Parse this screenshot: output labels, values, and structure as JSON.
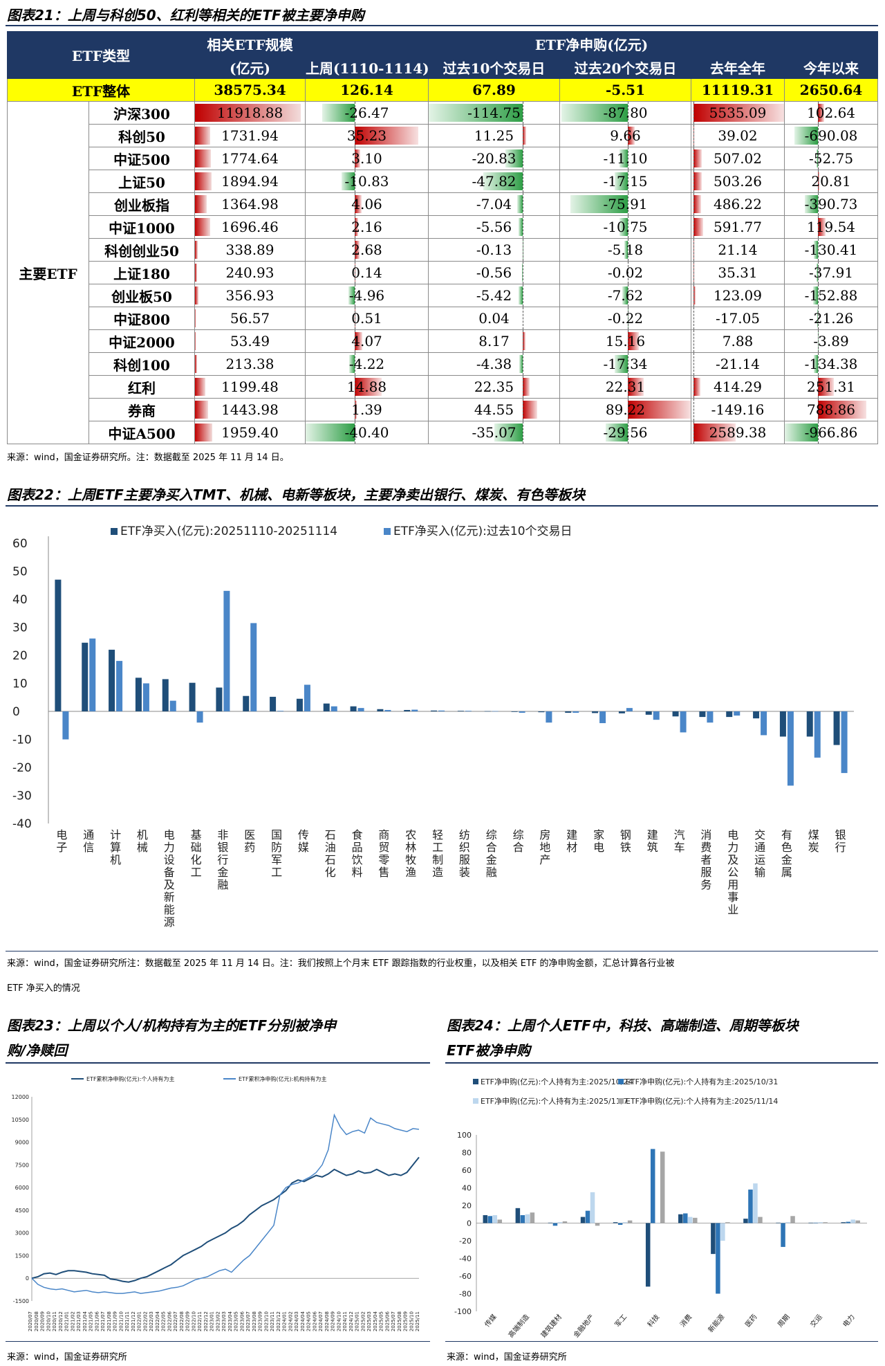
{
  "fig21": {
    "title": "图表21：上周与科创50、红利等相关的ETF被主要净申购",
    "headers": {
      "type": "ETF类型",
      "scale_line1": "相关ETF规模",
      "scale_line2": "(亿元)",
      "net_group": "ETF净申购(亿元)",
      "last_week": "上周(1110-1114)",
      "past10": "过去10个交易日",
      "past20": "过去20个交易日",
      "last_year": "去年全年",
      "ytd": "今年以来"
    },
    "total": {
      "name": "ETF整体",
      "values": [
        "38575.34",
        "126.14",
        "67.89",
        "-5.51",
        "11119.31",
        "2650.64"
      ]
    },
    "group_label": "主要ETF",
    "rows": [
      {
        "name": "沪深300",
        "values": [
          "11918.88",
          "-26.47",
          "-114.75",
          "-87.80",
          "5535.09",
          "102.64"
        ]
      },
      {
        "name": "科创50",
        "values": [
          "1731.94",
          "35.23",
          "11.25",
          "9.66",
          "39.02",
          "-690.08"
        ]
      },
      {
        "name": "中证500",
        "values": [
          "1774.64",
          "3.10",
          "-20.83",
          "-11.10",
          "507.02",
          "-52.75"
        ]
      },
      {
        "name": "上证50",
        "values": [
          "1894.94",
          "-10.83",
          "-47.82",
          "-17.15",
          "503.26",
          "20.81"
        ]
      },
      {
        "name": "创业板指",
        "values": [
          "1364.98",
          "4.06",
          "-7.04",
          "-75.91",
          "486.22",
          "-390.73"
        ]
      },
      {
        "name": "中证1000",
        "values": [
          "1696.46",
          "2.16",
          "-5.56",
          "-10.75",
          "591.77",
          "119.54"
        ]
      },
      {
        "name": "科创创业50",
        "values": [
          "338.89",
          "2.68",
          "-0.13",
          "-5.18",
          "21.14",
          "-130.41"
        ]
      },
      {
        "name": "上证180",
        "values": [
          "240.93",
          "0.14",
          "-0.56",
          "-0.02",
          "35.31",
          "-37.91"
        ]
      },
      {
        "name": "创业板50",
        "values": [
          "356.93",
          "-4.96",
          "-5.42",
          "-7.62",
          "123.09",
          "-152.88"
        ]
      },
      {
        "name": "中证800",
        "values": [
          "56.57",
          "0.51",
          "0.04",
          "-0.22",
          "-17.05",
          "-21.26"
        ]
      },
      {
        "name": "中证2000",
        "values": [
          "53.49",
          "4.07",
          "8.17",
          "15.16",
          "7.88",
          "-3.89"
        ]
      },
      {
        "name": "科创100",
        "values": [
          "213.38",
          "-4.22",
          "-4.38",
          "-17.34",
          "-21.14",
          "-134.38"
        ]
      },
      {
        "name": "红利",
        "values": [
          "1199.48",
          "14.88",
          "22.35",
          "22.31",
          "414.29",
          "251.31"
        ]
      },
      {
        "name": "券商",
        "values": [
          "1443.98",
          "1.39",
          "44.55",
          "89.22",
          "-149.16",
          "788.86"
        ]
      },
      {
        "name": "中证A500",
        "values": [
          "1959.40",
          "-40.40",
          "-35.07",
          "-29.56",
          "2589.38",
          "-966.86"
        ]
      }
    ],
    "source": "来源：wind，国金证券研究所。注：数据截至 2025 年 11 月 14 日。"
  },
  "fig22": {
    "title": "图表22：上周ETF主要净买入TMT、机械、电新等板块，主要净卖出银行、煤炭、有色等板块",
    "source_line1": "来源：wind，国金证券研究所注：数据截至 2025 年 11 月 14 日。注：我们按照上个月末 ETF 跟踪指数的行业权重，以及相关 ETF 的净申购金额，汇总计算各行业被",
    "source_line2": "ETF 净买入的情况"
  },
  "fig23": {
    "title_line1": "图表23：上周以个人/机构持有为主的ETF分别被净申",
    "title_line2": "购/净赎回",
    "source": "来源：wind，国金证券研究所"
  },
  "fig24": {
    "title_line1": "图表24：上周个人ETF中，科技、高端制造、周期等板块",
    "title_line2": "ETF被净申购",
    "source": "来源：wind，国金证券研究所"
  },
  "chart_data": [
    {
      "type": "bar",
      "title": "",
      "categories": [
        "电子",
        "通信",
        "计算机",
        "机械",
        "电力设备及新能源",
        "基础化工",
        "非银行金融",
        "医药",
        "国防军工",
        "传媒",
        "石油石化",
        "食品饮料",
        "商贸零售",
        "农林牧渔",
        "轻工制造",
        "纺织服装",
        "综合金融",
        "综合",
        "房地产",
        "建材",
        "家电",
        "钢铁",
        "建筑",
        "汽车",
        "消费者服务",
        "电力及公用事业",
        "交通运输",
        "有色金属",
        "煤炭",
        "银行"
      ],
      "series": [
        {
          "name": "ETF净买入(亿元):20251110-20251114",
          "color": "#1f4e79",
          "values": [
            47,
            24.5,
            22,
            12,
            11.5,
            10.2,
            8.5,
            5.5,
            5.2,
            4.5,
            2.8,
            1.8,
            0.8,
            0.5,
            0.3,
            0.2,
            0.1,
            -0.2,
            -0.3,
            -0.5,
            -0.6,
            -0.7,
            -1.2,
            -1.8,
            -2.0,
            -2.0,
            -2.5,
            -9,
            -9,
            -12
          ]
        },
        {
          "name": "ETF净买入(亿元):过去10个交易日",
          "color": "#4a86c8",
          "values": [
            -10,
            26,
            18,
            10,
            3.8,
            -4,
            43,
            31.5,
            0.2,
            9.5,
            1.8,
            1.2,
            0.5,
            0.6,
            0.3,
            0.2,
            0.1,
            -0.5,
            -4,
            -0.5,
            -4.2,
            1.2,
            -3,
            -7.5,
            -4,
            -1.5,
            -8.5,
            -26.5,
            -16.5,
            -22
          ]
        }
      ],
      "ylim": [
        -40,
        60
      ],
      "yticks": [
        60,
        50,
        40,
        30,
        20,
        10,
        0,
        -10,
        -20,
        -30,
        -40
      ],
      "xlabel": "",
      "ylabel": "",
      "legend": "top"
    },
    {
      "type": "line",
      "title": "",
      "x": [
        "2020/07",
        "2020/08",
        "2020/09",
        "2020/10",
        "2020/11",
        "2020/12",
        "2021/01",
        "2021/02",
        "2021/03",
        "2021/04",
        "2021/05",
        "2021/06",
        "2021/07",
        "2021/08",
        "2021/09",
        "2021/10",
        "2021/11",
        "2021/12",
        "2022/01",
        "2022/02",
        "2022/03",
        "2022/04",
        "2022/05",
        "2022/06",
        "2022/07",
        "2022/08",
        "2022/09",
        "2022/10",
        "2022/11",
        "2022/12",
        "2023/01",
        "2023/02",
        "2023/03",
        "2023/04",
        "2023/05",
        "2023/06",
        "2023/07",
        "2023/08",
        "2023/09",
        "2023/10",
        "2023/11",
        "2023/12",
        "2024/01",
        "2024/02",
        "2024/03",
        "2024/04",
        "2024/05",
        "2024/06",
        "2024/07",
        "2024/08",
        "2024/09",
        "2024/10",
        "2024/11",
        "2024/12",
        "2025/01",
        "2025/02",
        "2025/03",
        "2025/04",
        "2025/05",
        "2025/06",
        "2025/07",
        "2025/08",
        "2025/09",
        "2025/10",
        "2025/11"
      ],
      "series": [
        {
          "name": "ETF累积净申购(亿元):个人持有为主",
          "color": "#1f4e79",
          "values": [
            0,
            100,
            300,
            350,
            250,
            400,
            500,
            500,
            450,
            400,
            300,
            250,
            200,
            -50,
            -100,
            -200,
            -250,
            -150,
            0,
            100,
            300,
            500,
            700,
            900,
            1200,
            1500,
            1700,
            1900,
            2100,
            2400,
            2600,
            2800,
            3000,
            3300,
            3500,
            3800,
            4200,
            4500,
            4800,
            5000,
            5200,
            5500,
            5800,
            6300,
            6500,
            6400,
            6600,
            6800,
            6700,
            6900,
            7200,
            7000,
            6800,
            6900,
            7100,
            6950,
            7000,
            7200,
            7000,
            6800,
            6900,
            6800,
            7000,
            7500,
            8000
          ]
        },
        {
          "name": "ETF累积净申购(亿元):机构持有为主",
          "color": "#4a86c8",
          "values": [
            0,
            -400,
            -600,
            -700,
            -750,
            -700,
            -800,
            -900,
            -850,
            -800,
            -900,
            -950,
            -900,
            -950,
            -1000,
            -1000,
            -950,
            -900,
            -1000,
            -950,
            -900,
            -850,
            -750,
            -650,
            -600,
            -500,
            -300,
            -100,
            0,
            100,
            300,
            500,
            600,
            400,
            800,
            1200,
            1500,
            2000,
            2500,
            3000,
            3500,
            5500,
            6000,
            6200,
            6300,
            6500,
            6700,
            7000,
            7500,
            8500,
            10800,
            10000,
            9500,
            9700,
            9800,
            9600,
            10600,
            10300,
            10200,
            10100,
            9900,
            9800,
            9700,
            9900,
            9850
          ]
        }
      ],
      "ylim": [
        -1500,
        12000
      ],
      "yticks": [
        12000,
        10500,
        9000,
        7500,
        6000,
        4500,
        3000,
        1500,
        0,
        -1500
      ],
      "xlabel": "",
      "ylabel": "",
      "legend": "top"
    },
    {
      "type": "bar",
      "title": "",
      "categories": [
        "传媒",
        "高端制造",
        "建筑建材",
        "金融地产",
        "军工",
        "科技",
        "消费",
        "新能源",
        "医药",
        "周期",
        "交运",
        "电力"
      ],
      "series": [
        {
          "name": "ETF净申购(亿元):个人持有为主:2025/10/24",
          "color": "#1f4e79",
          "values": [
            9,
            17,
            0.5,
            7,
            1,
            -72,
            10,
            -35,
            5,
            0.5,
            0.5,
            1
          ]
        },
        {
          "name": "ETF净申购(亿元):个人持有为主:2025/10/31",
          "color": "#2e75b6",
          "values": [
            8,
            9,
            -3,
            14,
            -2,
            84,
            11,
            -80,
            38,
            -27,
            0.5,
            1.5
          ]
        },
        {
          "name": "ETF净申购(亿元):个人持有为主:2025/11/7",
          "color": "#bdd7ee",
          "values": [
            9,
            10,
            1,
            35,
            1,
            0,
            7,
            -20,
            45,
            1,
            1,
            4
          ]
        },
        {
          "name": "ETF净申购(亿元):个人持有为主:2025/11/14",
          "color": "#a6a6a6",
          "values": [
            4,
            12,
            2,
            -3,
            3,
            81,
            6,
            1,
            7,
            8,
            1,
            3
          ]
        }
      ],
      "ylim": [
        -100,
        100
      ],
      "yticks": [
        100,
        80,
        60,
        40,
        20,
        0,
        -20,
        -40,
        -60,
        -80,
        -100
      ],
      "xlabel": "",
      "ylabel": "",
      "legend": "top"
    }
  ]
}
